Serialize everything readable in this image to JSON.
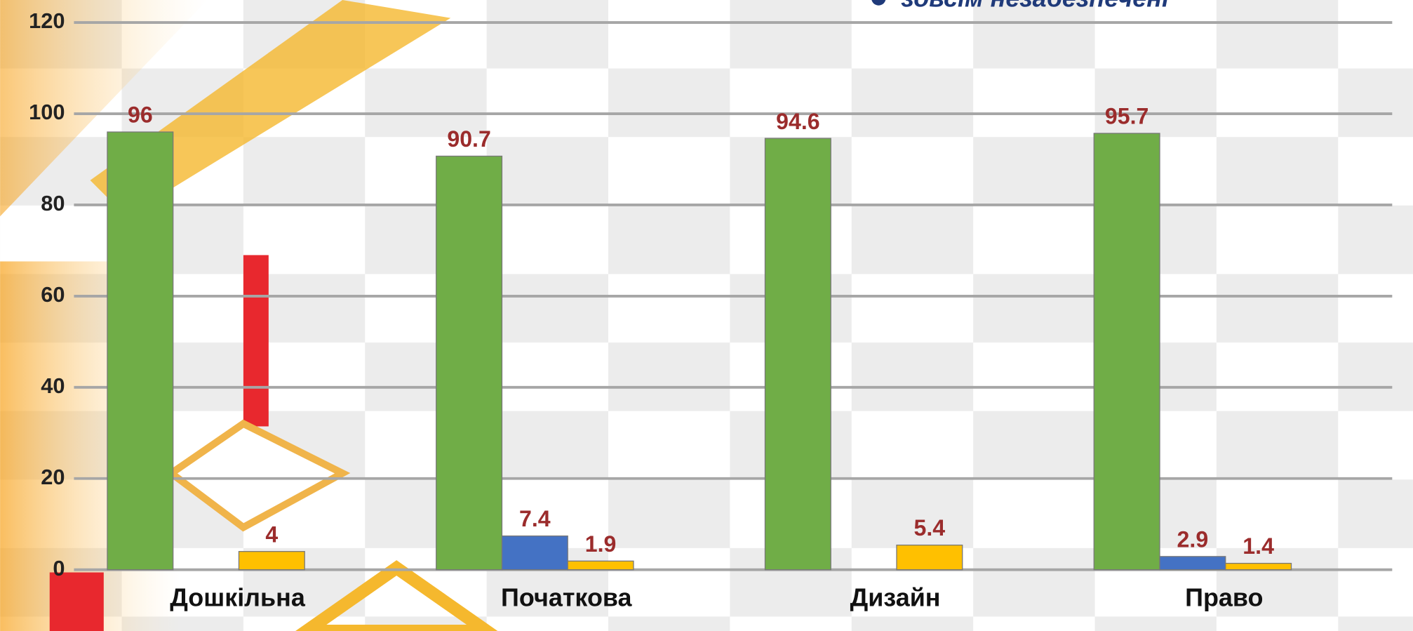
{
  "chart_data": {
    "type": "bar",
    "categories": [
      "Дошкільна",
      "Початкова",
      "Дизайн",
      "Право"
    ],
    "series": [
      {
        "color": "#70ad47",
        "values": [
          96,
          90.7,
          94.6,
          95.7
        ]
      },
      {
        "color": "#4472c4",
        "values": [
          null,
          7.4,
          null,
          2.9
        ]
      },
      {
        "name": "зовсім незабезпечені",
        "color": "#ffc000",
        "values": [
          4,
          1.9,
          5.4,
          1.4
        ]
      }
    ],
    "ylim": [
      0,
      120
    ],
    "yticks": [
      0,
      20,
      40,
      60,
      80,
      100,
      120
    ],
    "grid": true
  }
}
